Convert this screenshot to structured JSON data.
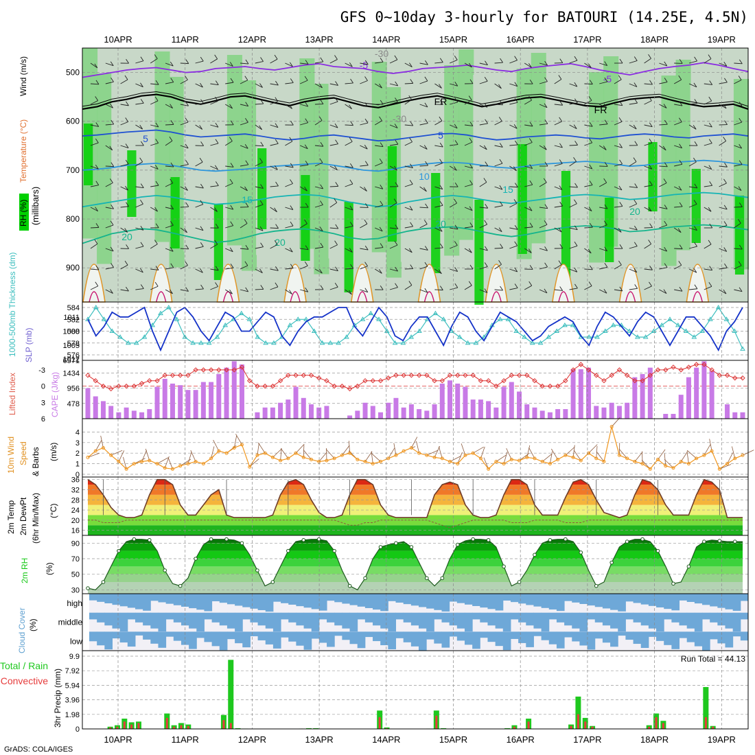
{
  "title": "GFS 0~10day 3-hourly for BATOURI (14.25E, 4.5N)",
  "footer": "GrADS: COLA/IGES",
  "colors": {
    "rh_dark": "#00d000",
    "rh_mid": "#86d486",
    "rh_light": "#c8d8c8",
    "temp_cold": "#8a2be2",
    "temp_fr": "#000000",
    "temp5": "#1e50d2",
    "temp10": "#2d96dc",
    "temp15": "#14b4b4",
    "temp20": "#14b48c",
    "slp": "#1432c8",
    "thickness": "#3cbebe",
    "cape": "#c87ae6",
    "li": "#dc3232",
    "speed": "#f0961e",
    "barb": "#8c5a3c",
    "temp_hot": "#e62814",
    "dewpt": "#32c832",
    "rh2m": "#14c814",
    "cloud": "#6ea8d8",
    "rain": "#1ec81e",
    "convective": "#e63c3c"
  },
  "chart_data": [
    {
      "type": "heatmap",
      "name_panel": "upper",
      "ylabel_parts": [
        "RH (%)",
        "Temperature (°C)",
        "Wind (m/s)"
      ],
      "ylabel_units": "(millibars)",
      "y_ticks": [
        "500",
        "600",
        "700",
        "800",
        "900"
      ],
      "y_range": [
        450,
        970
      ],
      "x_ticks": [
        "10APR",
        "11APR",
        "12APR",
        "13APR",
        "14APR",
        "15APR",
        "16APR",
        "17APR",
        "18APR",
        "19APR"
      ],
      "contour_labels": [
        "-5",
        "-5",
        "FR",
        "FR",
        "5",
        "5",
        "10",
        "15",
        "15",
        "20",
        "20",
        "20",
        "20",
        "-30",
        "-30"
      ],
      "isotherms": [
        {
          "level": "-5",
          "p": [
            510,
            505,
            500,
            495,
            492,
            490,
            495,
            500,
            498,
            492,
            490,
            488,
            492,
            495,
            490,
            485,
            482,
            488,
            490,
            492,
            498,
            502,
            498,
            492,
            490,
            488,
            485,
            490,
            495,
            498,
            492,
            488,
            485,
            482,
            488,
            495,
            500,
            505,
            498,
            492,
            488,
            485,
            480,
            485,
            492,
            498
          ]
        },
        {
          "level": "FR",
          "p": [
            575,
            570,
            560,
            555,
            548,
            545,
            550,
            560,
            565,
            558,
            550,
            548,
            555,
            562,
            568,
            560,
            555,
            552,
            560,
            568,
            572,
            565,
            558,
            552,
            548,
            555,
            562,
            570,
            565,
            558,
            552,
            550,
            556,
            562,
            568,
            570,
            562,
            555,
            552,
            550,
            558,
            565,
            570,
            568,
            565,
            575
          ]
        },
        {
          "level": "5",
          "p": [
            630,
            628,
            625,
            622,
            620,
            618,
            622,
            628,
            632,
            630,
            628,
            626,
            630,
            635,
            638,
            635,
            630,
            628,
            632,
            636,
            640,
            638,
            634,
            630,
            626,
            625,
            628,
            634,
            638,
            636,
            632,
            630,
            628,
            630,
            634,
            636,
            632,
            628,
            626,
            628,
            632,
            634,
            630,
            628,
            626,
            630
          ]
        },
        {
          "level": "10",
          "p": [
            700,
            698,
            695,
            690,
            688,
            686,
            690,
            695,
            700,
            702,
            700,
            698,
            695,
            692,
            690,
            688,
            686,
            690,
            695,
            700,
            702,
            698,
            692,
            688,
            685,
            684,
            686,
            690,
            694,
            696,
            692,
            688,
            686,
            684,
            682,
            684,
            688,
            692,
            690,
            686,
            684,
            682,
            680,
            682,
            686,
            690
          ]
        },
        {
          "level": "15",
          "p": [
            775,
            770,
            765,
            760,
            755,
            752,
            755,
            760,
            765,
            770,
            768,
            764,
            760,
            755,
            752,
            750,
            752,
            758,
            765,
            770,
            775,
            772,
            765,
            760,
            755,
            752,
            755,
            760,
            765,
            768,
            764,
            760,
            756,
            752,
            750,
            752,
            756,
            760,
            758,
            754,
            750,
            748,
            746,
            748,
            752,
            756
          ]
        },
        {
          "level": "20",
          "p": [
            850,
            840,
            830,
            825,
            820,
            822,
            828,
            835,
            842,
            848,
            845,
            838,
            830,
            825,
            822,
            820,
            824,
            830,
            838,
            842,
            840,
            832,
            825,
            820,
            818,
            816,
            820,
            826,
            832,
            836,
            832,
            826,
            820,
            816,
            814,
            816,
            820,
            826,
            824,
            820,
            816,
            814,
            812,
            814,
            818,
            822
          ]
        }
      ]
    },
    {
      "type": "line",
      "name_panel": "slp_thickness",
      "ylabel_left": "1000-500mb Thickness (dm)",
      "ylabel_right": "SLP (mb)",
      "y_ticks_left": [
        "576",
        "578",
        "580",
        "582",
        "584"
      ],
      "y_ticks_right": [
        "1005",
        "1008",
        "1011"
      ],
      "y_corner": "1012",
      "slp": [
        1010.5,
        1007,
        1009,
        1012,
        1011,
        1011,
        1012,
        1013,
        1008,
        1004,
        1008,
        1012,
        1013,
        1011,
        1008,
        1006,
        1009,
        1012,
        1011,
        1008,
        1008,
        1010,
        1012,
        1011,
        1007,
        1005,
        1008,
        1010,
        1011,
        1011,
        1012,
        1013,
        1013,
        1009,
        1007,
        1010,
        1013,
        1011,
        1007,
        1006,
        1009,
        1011,
        1011,
        1008,
        1005,
        1009,
        1012,
        1011,
        1008,
        1006,
        1009,
        1012,
        1011,
        1010,
        1008,
        1006,
        1007,
        1009,
        1010,
        1011,
        1010,
        1007,
        1005,
        1009,
        1012,
        1011,
        1009,
        1007,
        1010,
        1012,
        1011,
        1008,
        1005,
        1008,
        1011,
        1011,
        1009,
        1007,
        1004,
        1008,
        1010,
        1013
      ],
      "thickness": [
        582,
        584,
        582,
        580,
        579,
        578,
        578,
        579,
        581,
        583,
        584,
        582,
        579,
        578,
        578,
        578,
        579,
        581,
        582,
        583,
        582,
        579,
        578,
        578,
        579,
        581,
        582,
        582,
        580,
        578,
        578,
        578,
        579,
        581,
        582,
        583,
        582,
        580,
        578,
        578,
        579,
        580,
        582,
        583,
        582,
        580,
        579,
        578,
        578,
        579,
        581,
        582,
        582,
        580,
        579,
        578,
        578,
        579,
        580,
        581,
        581,
        579,
        579,
        579,
        580,
        581,
        581,
        580,
        579,
        579,
        580,
        581,
        582,
        581,
        580,
        579,
        580,
        582,
        584,
        582,
        580,
        577
      ]
    },
    {
      "type": "bar",
      "name_panel": "cape_li",
      "ylabel_left": "Lifted Index",
      "ylabel_right": "CAPE (J/kg)",
      "y_ticks_left": [
        "-3",
        "0",
        "3",
        "6"
      ],
      "y_ticks_right": [
        "478",
        "956",
        "1434"
      ],
      "y_corner": "6571",
      "cape": [
        956,
        700,
        550,
        400,
        200,
        350,
        250,
        200,
        300,
        1000,
        1250,
        1100,
        1050,
        900,
        900,
        1150,
        1150,
        1400,
        1600,
        1800,
        1700,
        0,
        200,
        350,
        350,
        500,
        600,
        1000,
        650,
        450,
        350,
        400,
        0,
        0,
        100,
        250,
        500,
        400,
        200,
        500,
        650,
        350,
        450,
        300,
        250,
        450,
        1100,
        1200,
        1100,
        1000,
        600,
        600,
        550,
        350,
        1000,
        1150,
        850,
        450,
        350,
        250,
        200,
        300,
        300,
        1550,
        1550,
        1600,
        400,
        350,
        500,
        400,
        500,
        1300,
        1400,
        1600,
        0,
        150,
        150,
        750,
        1300,
        1600,
        1800,
        1500,
        0,
        450,
        200,
        200
      ],
      "lifted_index": [
        -2,
        -1,
        0,
        0.5,
        0,
        0,
        0,
        -0.5,
        -1,
        -1,
        -2,
        -2,
        -2,
        -2,
        -3,
        -3,
        -3,
        -3,
        -3,
        -3,
        -3.5,
        -1,
        0,
        0,
        0,
        -1,
        -2,
        -2,
        -2,
        -2,
        -1.5,
        -1,
        0,
        0,
        0.5,
        0,
        -1,
        -1,
        -1,
        -1.5,
        -2,
        -2,
        -2,
        -2,
        -2,
        -1,
        -1,
        -2,
        -2,
        -2,
        -2,
        -1,
        -1,
        0,
        -1,
        -2,
        -2,
        -2,
        -1,
        0,
        0,
        0,
        -1,
        -3,
        -4,
        -3,
        -2,
        -1,
        -2,
        -3,
        -2,
        -1,
        -1,
        -2,
        -3,
        -3,
        -3.5,
        -3,
        -3.5,
        -4,
        -4,
        -3,
        -2,
        -2,
        -1.5,
        -1.5
      ]
    },
    {
      "type": "line",
      "name_panel": "wind10m",
      "ylabel": "10m Wind Speed & Barbs (m/s)",
      "ylabel_parts": [
        "10m Wind",
        "Speed",
        "& Barbs",
        "(m/s)"
      ],
      "y_ticks": [
        "0",
        "1",
        "2",
        "3",
        "4"
      ],
      "y_range": [
        0,
        5
      ],
      "speed": [
        1.6,
        2.2,
        2.5,
        1.8,
        1.2,
        0.5,
        1.0,
        1.2,
        1.3,
        1.0,
        0.6,
        0.5,
        0.8,
        1.0,
        1.2,
        1.0,
        1.5,
        2.2,
        2.0,
        2.5,
        2.8,
        0.7,
        1.8,
        2.0,
        1.6,
        1.3,
        1.5,
        2.0,
        1.6,
        1.4,
        1.2,
        1.3,
        1.5,
        1.8,
        2.0,
        1.4,
        1.2,
        1.0,
        1.2,
        1.5,
        1.8,
        2.2,
        2.5,
        2.0,
        1.8,
        1.6,
        1.5,
        1.2,
        1.0,
        1.8,
        2.0,
        1.5,
        0.5,
        1.2,
        1.0,
        1.4,
        1.3,
        1.6,
        1.5,
        1.2,
        1.0,
        1.4,
        1.8,
        1.6,
        1.3,
        2.0,
        1.5,
        1.2,
        4.5,
        1.8,
        1.5,
        1.2,
        1.0,
        0.5,
        1.4,
        0.8,
        0.6,
        1.2,
        1.0,
        1.5,
        1.8,
        2.2,
        0.5,
        1.0,
        1.5,
        1.8
      ]
    },
    {
      "type": "area",
      "name_panel": "temp2m",
      "ylabel_parts": [
        "2m Temp",
        "2m DewPt",
        "(6hr Min/Max)",
        "(°C)"
      ],
      "y_ticks": [
        "16",
        "20",
        "24",
        "28",
        "32",
        "36"
      ],
      "y_range": [
        14,
        37
      ],
      "temp": [
        36,
        34,
        30,
        25,
        22,
        21,
        21,
        22,
        30,
        36,
        36,
        34,
        26,
        22,
        22,
        26,
        30,
        32,
        22,
        21,
        21,
        21,
        21,
        21,
        22,
        30,
        35,
        36,
        34,
        28,
        23,
        21,
        21,
        22,
        30,
        36,
        36,
        34,
        26,
        22,
        21,
        21,
        21,
        21,
        21,
        30,
        34,
        35,
        34,
        26,
        22,
        21,
        21,
        22,
        30,
        36,
        36,
        34,
        26,
        22,
        22,
        22,
        29,
        35,
        36,
        34,
        28,
        23,
        22,
        21,
        22,
        30,
        36,
        35,
        32,
        26,
        22,
        22,
        22,
        30,
        36,
        35,
        32,
        21,
        21,
        21
      ],
      "dewpt": [
        20,
        20,
        19,
        19,
        19,
        20,
        20,
        20,
        20,
        20,
        20,
        20,
        20,
        20,
        20,
        20,
        20,
        20,
        20,
        20,
        20,
        20,
        20,
        20,
        20,
        20,
        20,
        20,
        20,
        20,
        20,
        20,
        20,
        19,
        18,
        18,
        19,
        19,
        20,
        20,
        20,
        20,
        20,
        20,
        20,
        19,
        18,
        17,
        18,
        19,
        20,
        20,
        20,
        20,
        20,
        19,
        19,
        19,
        20,
        20,
        20,
        20,
        19,
        19,
        19,
        20,
        20,
        20,
        20,
        20,
        20,
        20,
        20,
        20,
        20,
        20,
        20,
        20,
        20,
        20,
        20,
        20,
        20,
        20,
        20,
        20
      ]
    },
    {
      "type": "area",
      "name_panel": "rh2m",
      "ylabel_parts": [
        "2m RH",
        "(%)"
      ],
      "y_ticks": [
        "30",
        "50",
        "70",
        "90"
      ],
      "y_range": [
        25,
        100
      ],
      "rh": [
        32,
        30,
        40,
        60,
        80,
        92,
        95,
        95,
        94,
        80,
        55,
        38,
        35,
        45,
        70,
        88,
        95,
        95,
        95,
        94,
        90,
        75,
        55,
        35,
        40,
        60,
        80,
        92,
        94,
        95,
        95,
        93,
        80,
        55,
        35,
        30,
        45,
        70,
        85,
        88,
        90,
        92,
        85,
        65,
        45,
        35,
        45,
        70,
        88,
        93,
        95,
        95,
        94,
        85,
        60,
        35,
        40,
        55,
        75,
        90,
        94,
        95,
        95,
        92,
        78,
        55,
        35,
        40,
        65,
        85,
        92,
        95,
        95,
        92,
        80,
        60,
        38,
        40,
        60,
        85,
        92,
        94,
        93,
        92,
        92,
        92
      ]
    },
    {
      "type": "heatmap",
      "name_panel": "cloud",
      "ylabel_parts": [
        "Cloud Cover",
        "(%)"
      ],
      "layers": [
        "high",
        "middle",
        "low"
      ]
    },
    {
      "type": "bar",
      "name_panel": "precip",
      "ylabel_parts": [
        "3hr Precip (mm)"
      ],
      "legend_left": [
        "Total / Rain",
        "Convective"
      ],
      "y_ticks": [
        "0",
        "1.98",
        "3.96",
        "5.94",
        "7.92",
        "9.9"
      ],
      "y_range": [
        0,
        9.9
      ],
      "annotation": "Run Total = 44.13",
      "total": [
        0,
        0,
        0.3,
        0.5,
        1.4,
        0.9,
        1.0,
        0,
        0,
        0,
        2.1,
        0.5,
        0.8,
        0.6,
        0,
        0,
        0,
        0,
        1.9,
        9.4,
        0.1,
        0.05,
        0,
        0,
        0,
        0,
        0,
        0,
        0,
        0.05,
        0.1,
        0.1,
        0,
        0,
        0,
        0,
        0,
        0,
        0,
        0,
        2.5,
        0.2,
        0,
        0,
        0,
        0,
        0,
        0.05,
        2.5,
        0.1,
        0,
        0,
        0,
        0,
        0,
        0,
        0,
        0,
        0.1,
        0.5,
        0,
        1.4,
        0,
        0,
        0,
        0,
        0,
        0.6,
        4.4,
        1.5,
        0.4,
        0,
        0,
        0,
        0,
        0,
        0,
        0,
        0.5,
        2.1,
        1.1,
        0,
        0,
        0,
        0,
        0,
        5.7,
        0.4,
        0,
        0,
        0,
        0
      ],
      "convective": [
        0,
        0,
        0.2,
        0.3,
        1.0,
        0.6,
        0.8,
        0,
        0,
        0,
        1.5,
        0.3,
        0.5,
        0.4,
        0,
        0,
        0,
        0,
        1.2,
        0.8,
        0.05,
        0,
        0,
        0,
        0,
        0,
        0,
        0,
        0,
        0.05,
        0.05,
        0.05,
        0,
        0,
        0,
        0,
        0,
        0,
        0,
        0,
        1.6,
        0.1,
        0,
        0,
        0,
        0,
        0,
        0,
        1.8,
        0.05,
        0,
        0,
        0,
        0,
        0,
        0,
        0,
        0,
        0.05,
        0.3,
        0,
        1.0,
        0,
        0,
        0,
        0,
        0,
        0.4,
        2.0,
        1.0,
        0.3,
        0,
        0,
        0,
        0,
        0,
        0,
        0,
        0.3,
        1.6,
        0.8,
        0,
        0,
        0,
        0,
        0,
        1.6,
        0.3,
        0,
        0,
        0,
        0
      ]
    }
  ]
}
